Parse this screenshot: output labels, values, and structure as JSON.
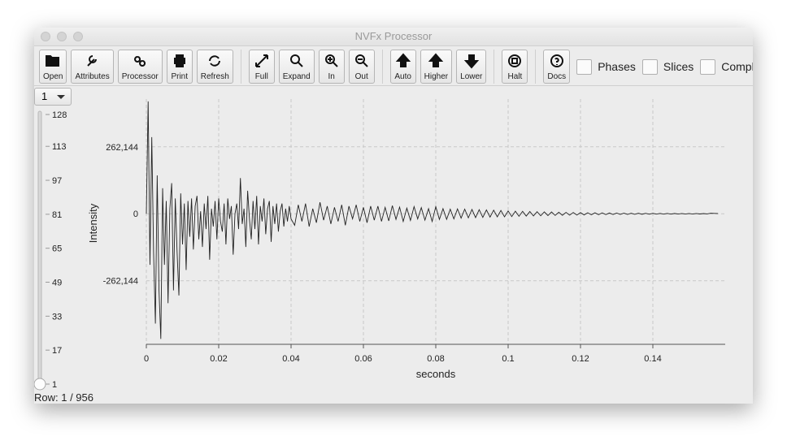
{
  "window": {
    "title": "NVFx Processor"
  },
  "toolbar": {
    "buttons": [
      "Open",
      "Attributes",
      "Processor",
      "Print",
      "Refresh",
      "Full",
      "Expand",
      "In",
      "Out",
      "Auto",
      "Higher",
      "Lower",
      "Halt",
      "Docs"
    ],
    "checkboxes": [
      "Phases",
      "Slices",
      "Complex"
    ]
  },
  "row_selector": {
    "value": "1",
    "slider_ticks": [
      128,
      113,
      97,
      81,
      65,
      49,
      33,
      17,
      1
    ]
  },
  "status": "Row: 1 / 956",
  "chart_data": {
    "type": "line",
    "xlabel": "seconds",
    "ylabel": "Intensity",
    "color": "#222222",
    "grid": true,
    "xlim": [
      0,
      0.16
    ],
    "xticks": [
      0,
      0.02,
      0.04,
      0.06,
      0.08,
      0.1,
      0.12,
      0.14
    ],
    "ylim": [
      -511000,
      449000
    ],
    "yticks": [
      {
        "value": -262144,
        "label": "-262,144"
      },
      0,
      {
        "value": 262144,
        "label": "262,144"
      }
    ],
    "x": [
      0,
      0.0005,
      0.001,
      0.0015,
      0.002,
      0.0025,
      0.003,
      0.0035,
      0.004,
      0.0045,
      0.005,
      0.0055,
      0.006,
      0.0065,
      0.007,
      0.0075,
      0.008,
      0.0085,
      0.009,
      0.0095,
      0.01,
      0.0105,
      0.011,
      0.0115,
      0.012,
      0.0125,
      0.013,
      0.0135,
      0.014,
      0.0145,
      0.015,
      0.0155,
      0.016,
      0.0165,
      0.017,
      0.0175,
      0.018,
      0.0185,
      0.019,
      0.0195,
      0.02,
      0.0205,
      0.021,
      0.0215,
      0.022,
      0.0225,
      0.023,
      0.0235,
      0.024,
      0.0245,
      0.025,
      0.0255,
      0.026,
      0.0265,
      0.027,
      0.0275,
      0.028,
      0.0285,
      0.029,
      0.0295,
      0.03,
      0.0305,
      0.031,
      0.0315,
      0.032,
      0.0325,
      0.033,
      0.0335,
      0.034,
      0.0345,
      0.035,
      0.0355,
      0.036,
      0.0365,
      0.037,
      0.0375,
      0.038,
      0.0385,
      0.039,
      0.0395,
      0.04,
      0.041,
      0.042,
      0.043,
      0.044,
      0.045,
      0.046,
      0.047,
      0.048,
      0.049,
      0.05,
      0.051,
      0.052,
      0.053,
      0.054,
      0.055,
      0.056,
      0.057,
      0.058,
      0.059,
      0.06,
      0.061,
      0.062,
      0.063,
      0.064,
      0.065,
      0.066,
      0.067,
      0.068,
      0.069,
      0.07,
      0.071,
      0.072,
      0.073,
      0.074,
      0.075,
      0.076,
      0.077,
      0.078,
      0.079,
      0.08,
      0.081,
      0.082,
      0.083,
      0.084,
      0.085,
      0.086,
      0.087,
      0.088,
      0.089,
      0.09,
      0.091,
      0.092,
      0.093,
      0.094,
      0.095,
      0.096,
      0.097,
      0.098,
      0.099,
      0.1,
      0.101,
      0.102,
      0.103,
      0.104,
      0.105,
      0.106,
      0.107,
      0.108,
      0.109,
      0.11,
      0.111,
      0.112,
      0.113,
      0.114,
      0.115,
      0.116,
      0.117,
      0.118,
      0.119,
      0.12,
      0.121,
      0.122,
      0.123,
      0.124,
      0.125,
      0.126,
      0.127,
      0.128,
      0.129,
      0.13,
      0.131,
      0.132,
      0.133,
      0.134,
      0.135,
      0.136,
      0.137,
      0.138,
      0.139,
      0.14,
      0.141,
      0.142,
      0.143,
      0.144,
      0.145,
      0.146,
      0.147,
      0.148,
      0.149,
      0.15,
      0.151,
      0.152,
      0.153,
      0.154,
      0.155,
      0.156,
      0.157,
      0.158
    ],
    "values": [
      0,
      440000,
      -200000,
      300000,
      -150000,
      -430000,
      150000,
      -300000,
      -490000,
      100000,
      -200000,
      50000,
      -350000,
      20000,
      120000,
      -300000,
      60000,
      -150000,
      -320000,
      80000,
      -120000,
      40000,
      -220000,
      50000,
      -90000,
      60000,
      -140000,
      30000,
      70000,
      -100000,
      10000,
      -130000,
      40000,
      -60000,
      70000,
      -180000,
      20000,
      -50000,
      50000,
      -100000,
      60000,
      -30000,
      -70000,
      40000,
      -120000,
      60000,
      -20000,
      30000,
      -160000,
      0,
      40000,
      -60000,
      140000,
      -40000,
      20000,
      -130000,
      90000,
      -20000,
      -100000,
      50000,
      -60000,
      70000,
      -120000,
      30000,
      -30000,
      60000,
      -80000,
      20000,
      50000,
      -110000,
      30000,
      -40000,
      40000,
      -70000,
      10000,
      40000,
      -50000,
      20000,
      -30000,
      30000,
      -20000,
      -45000,
      35000,
      -30000,
      40000,
      -50000,
      20000,
      -35000,
      45000,
      -25000,
      30000,
      -40000,
      25000,
      -30000,
      35000,
      -45000,
      30000,
      -20000,
      35000,
      -30000,
      25000,
      -35000,
      30000,
      -25000,
      30000,
      -30000,
      25000,
      -28000,
      32000,
      -22000,
      26000,
      -30000,
      22000,
      -26000,
      28000,
      -20000,
      24000,
      -25000,
      20000,
      -30000,
      28000,
      -22000,
      20000,
      -22000,
      18000,
      -20000,
      19000,
      -17000,
      18000,
      -16000,
      17000,
      -15000,
      16000,
      -14000,
      15000,
      -13000,
      14000,
      -12000,
      13000,
      -12000,
      11000,
      -11000,
      10000,
      -10000,
      9500,
      -9000,
      9000,
      -8500,
      8000,
      -8000,
      7500,
      -7000,
      7000,
      -6500,
      6000,
      -6000,
      5500,
      -5500,
      5000,
      -5000,
      4500,
      -4500,
      4000,
      -4000,
      3800,
      -3500,
      3500,
      -3200,
      3000,
      -3000,
      2800,
      -2600,
      2500,
      -2400,
      2200,
      -2200,
      2000,
      -1900,
      1800,
      -1700,
      1600,
      -1500,
      1500,
      -1400,
      1300,
      -1300,
      1200,
      -1100,
      1100,
      -1000,
      1000,
      -900,
      900,
      -800,
      800,
      -700,
      2000,
      1500,
      1000
    ]
  }
}
